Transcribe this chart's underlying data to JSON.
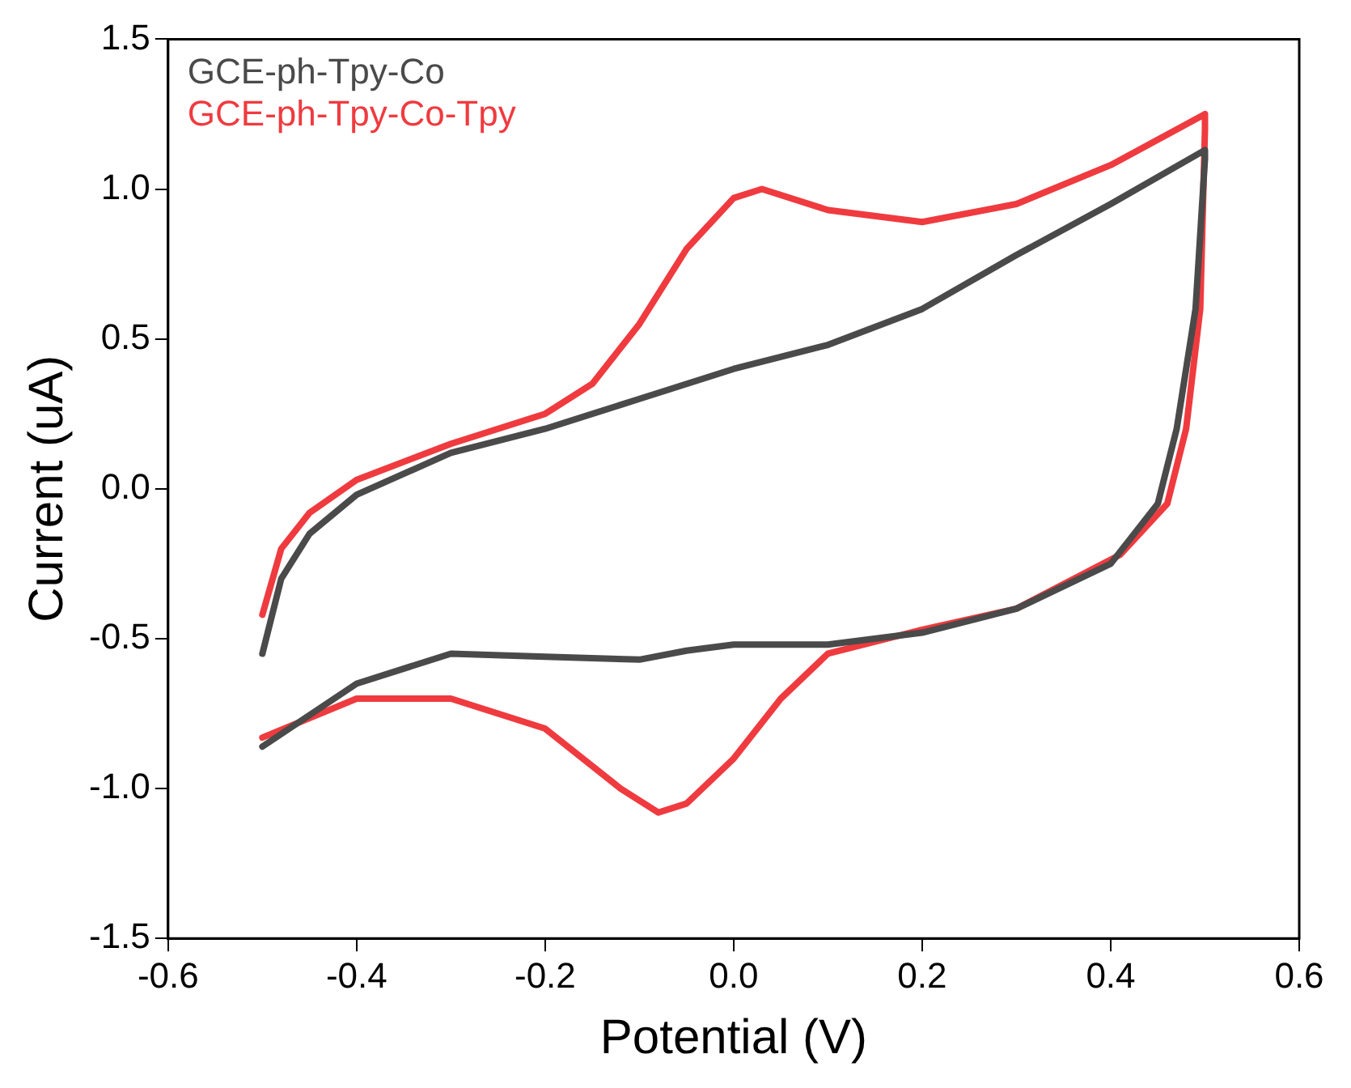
{
  "chart_data": {
    "type": "line",
    "xlabel": "Potential (V)",
    "ylabel": "Current (uA)",
    "xlim": [
      -0.6,
      0.6
    ],
    "xticks": [
      -0.6,
      -0.4,
      -0.2,
      {
        "value": 0,
        "label": "0.0"
      },
      0.2,
      0.4,
      0.6
    ],
    "ylim": [
      -1.5,
      1.5
    ],
    "yticks": [
      -1.5,
      {
        "value": -1,
        "label": "-1.0"
      },
      -0.5,
      {
        "value": 0,
        "label": "0.0"
      },
      0.5,
      {
        "value": 1,
        "label": "1.0"
      },
      1.5
    ],
    "grid": false,
    "legend": "top left",
    "marker": "none",
    "line_style": "solid",
    "series": [
      {
        "name": "GCE-ph-Tpy-Co",
        "color": "#4a4a4a",
        "x": [
          -0.5,
          -0.48,
          -0.45,
          -0.4,
          -0.3,
          -0.2,
          -0.1,
          0.0,
          0.1,
          0.2,
          0.3,
          0.4,
          0.5,
          0.5,
          0.49,
          0.47,
          0.45,
          0.4,
          0.3,
          0.2,
          0.1,
          0.0,
          -0.05,
          -0.1,
          -0.2,
          -0.3,
          -0.4,
          -0.5
        ],
        "values": [
          -0.55,
          -0.3,
          -0.15,
          -0.02,
          0.12,
          0.2,
          0.3,
          0.4,
          0.48,
          0.6,
          0.78,
          0.95,
          1.13,
          1.1,
          0.6,
          0.2,
          -0.05,
          -0.25,
          -0.4,
          -0.48,
          -0.52,
          -0.52,
          -0.54,
          -0.57,
          -0.56,
          -0.55,
          -0.65,
          -0.86
        ]
      },
      {
        "name": "GCE-ph-Tpy-Co-Tpy",
        "color": "#ef3b3f",
        "x": [
          -0.5,
          -0.48,
          -0.45,
          -0.4,
          -0.3,
          -0.2,
          -0.15,
          -0.1,
          -0.05,
          0.0,
          0.03,
          0.1,
          0.2,
          0.3,
          0.4,
          0.5,
          0.5,
          0.495,
          0.48,
          0.46,
          0.41,
          0.3,
          0.2,
          0.1,
          0.05,
          0.0,
          -0.05,
          -0.08,
          -0.12,
          -0.2,
          -0.3,
          -0.4,
          -0.5
        ],
        "values": [
          -0.42,
          -0.2,
          -0.08,
          0.03,
          0.15,
          0.25,
          0.35,
          0.55,
          0.8,
          0.97,
          1.0,
          0.93,
          0.89,
          0.95,
          1.08,
          1.25,
          1.2,
          0.6,
          0.2,
          -0.05,
          -0.22,
          -0.4,
          -0.47,
          -0.55,
          -0.7,
          -0.9,
          -1.05,
          -1.08,
          -1.0,
          -0.8,
          -0.7,
          -0.7,
          -0.83
        ]
      }
    ]
  }
}
